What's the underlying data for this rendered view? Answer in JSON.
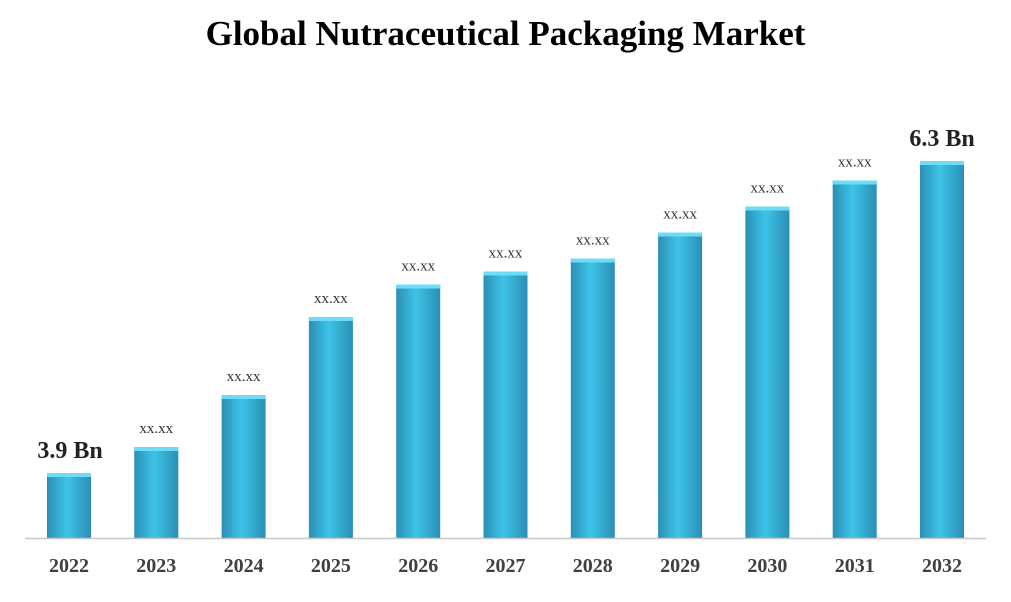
{
  "chart_data": {
    "type": "bar",
    "title": "Global Nutraceutical Packaging Market",
    "xlabel": "",
    "ylabel": "",
    "categories": [
      "2022",
      "2023",
      "2024",
      "2025",
      "2026",
      "2027",
      "2028",
      "2029",
      "2030",
      "2031",
      "2032"
    ],
    "values": [
      3.9,
      4.1,
      4.5,
      5.1,
      5.35,
      5.45,
      5.55,
      5.75,
      5.95,
      6.15,
      6.3
    ],
    "data_labels": [
      "3.9 Bn",
      "xx.xx",
      "xx.xx",
      "xx.xx",
      "xx.xx",
      "xx.xx",
      "xx.xx",
      "xx.xx",
      "xx.xx",
      "xx.xx",
      "6.3 Bn"
    ],
    "ylim": [
      3.4,
      6.3
    ],
    "grid": false,
    "legend": "none",
    "colors": {
      "bar_light": "#3ec3e8",
      "bar_dark": "#2a8fb4",
      "bar_top": "#6fdcf7",
      "axis": "#c8c8c8"
    }
  }
}
